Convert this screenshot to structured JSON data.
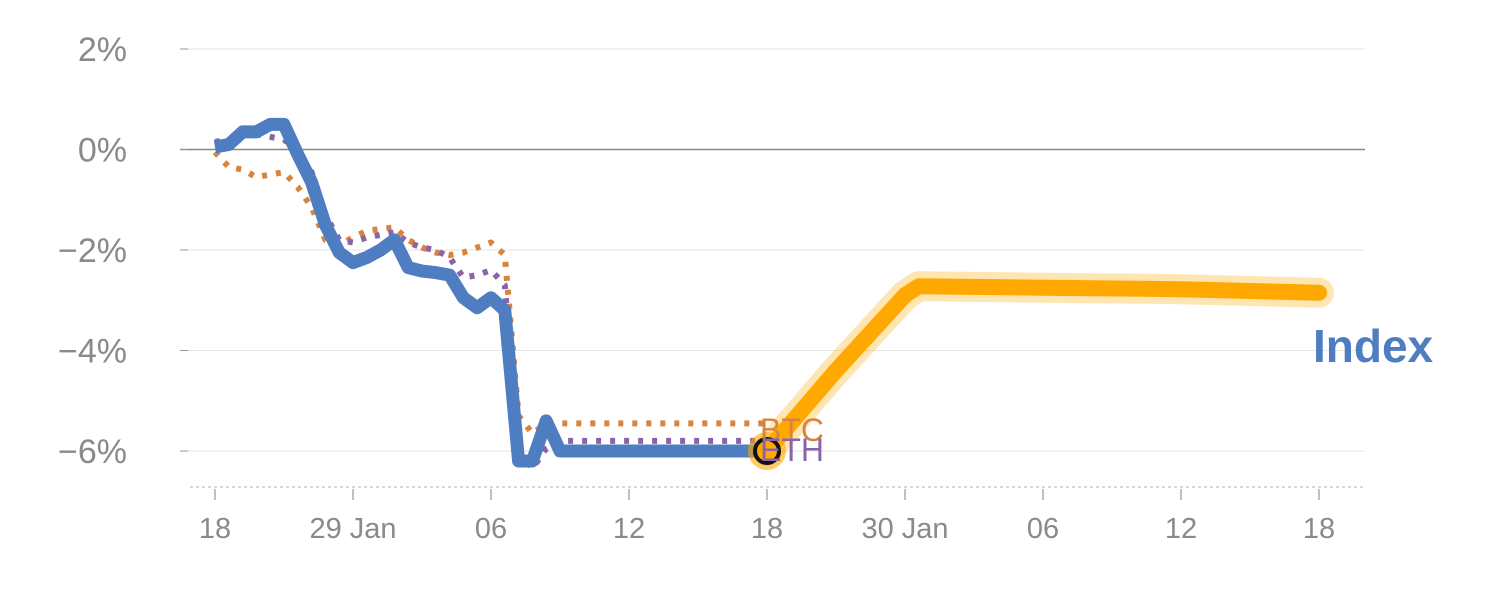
{
  "chart_data": {
    "type": "line",
    "title": "",
    "xlabel": "",
    "ylabel": "",
    "ylim": [
      -6.7,
      2.2
    ],
    "y_ticks": [
      {
        "value": 2,
        "label": "2%"
      },
      {
        "value": 0,
        "label": "0%"
      },
      {
        "value": -2,
        "label": "−2%"
      },
      {
        "value": -4,
        "label": "−4%"
      },
      {
        "value": -6,
        "label": "−6%"
      }
    ],
    "x_range": [
      -0.3,
      83.5
    ],
    "x_ticks": [
      {
        "day": 0,
        "label": "18"
      },
      {
        "day": 10,
        "label": "29 Jan"
      },
      {
        "day": 20,
        "label": "06"
      },
      {
        "day": 30,
        "label": "12"
      },
      {
        "day": 40,
        "label": "18"
      },
      {
        "day": 50,
        "label": "30 Jan"
      },
      {
        "day": 60,
        "label": "06"
      },
      {
        "day": 70,
        "label": "12"
      },
      {
        "day": 80,
        "label": "18"
      }
    ],
    "grid": true,
    "colors": {
      "index": "#4e7ec1",
      "btc": "#d9843c",
      "eth": "#8a63a8",
      "projection": "#ffa800",
      "grid": "#e6e6e6",
      "zero": "#888888",
      "axis_text": "#8a8a8a"
    },
    "series": [
      {
        "name": "Index",
        "style": "solid",
        "x": [
          0,
          1,
          2,
          3,
          4,
          5,
          6,
          7,
          8,
          9,
          10,
          11,
          12,
          13,
          14,
          15,
          16,
          17,
          18,
          19,
          20,
          21,
          22,
          23,
          24,
          25,
          26,
          27,
          28,
          29,
          30,
          31,
          32,
          33,
          34,
          35,
          36,
          37,
          38,
          39,
          40
        ],
        "y": [
          0.05,
          0.1,
          0.35,
          0.35,
          0.5,
          0.5,
          -0.1,
          -0.65,
          -1.5,
          -2.05,
          -2.25,
          -2.15,
          -2.0,
          -1.8,
          -2.35,
          -2.42,
          -2.45,
          -2.5,
          -2.95,
          -3.15,
          -2.95,
          -3.2,
          -6.2,
          -6.2,
          -5.4,
          -6.0,
          -6.0,
          -6.0,
          -6.0,
          -6.0,
          -6.0,
          -6.0,
          -6.0,
          -6.0,
          -6.0,
          -6.0,
          -6.0,
          -6.0,
          -6.0,
          -6.0,
          -6.0
        ]
      },
      {
        "name": "BTC",
        "style": "dotted",
        "x": [
          0,
          1,
          2,
          3,
          4,
          5,
          6,
          7,
          8,
          9,
          10,
          11,
          12,
          13,
          14,
          15,
          16,
          17,
          18,
          19,
          20,
          21,
          22,
          23,
          24,
          25,
          26,
          27,
          28,
          29,
          30,
          31,
          32,
          33,
          34,
          35,
          36,
          37,
          38,
          39,
          40
        ],
        "y": [
          -0.05,
          -0.35,
          -0.4,
          -0.55,
          -0.5,
          -0.45,
          -0.75,
          -1.15,
          -1.8,
          -1.9,
          -1.75,
          -1.62,
          -1.58,
          -1.55,
          -1.8,
          -1.95,
          -2.05,
          -2.1,
          -2.05,
          -1.95,
          -1.85,
          -2.1,
          -5.3,
          -5.65,
          -5.45,
          -5.45,
          -5.45,
          -5.45,
          -5.45,
          -5.45,
          -5.45,
          -5.45,
          -5.45,
          -5.45,
          -5.45,
          -5.45,
          -5.45,
          -5.45,
          -5.45,
          -5.45,
          -5.45
        ]
      },
      {
        "name": "ETH",
        "style": "dotted",
        "x": [
          0,
          1,
          2,
          3,
          4,
          5,
          6,
          7,
          8,
          9,
          10,
          11,
          12,
          13,
          14,
          15,
          16,
          17,
          18,
          19,
          20,
          21,
          22,
          23,
          24,
          25,
          26,
          27,
          28,
          29,
          30,
          31,
          32,
          33,
          34,
          35,
          36,
          37,
          38,
          39,
          40
        ],
        "y": [
          0.15,
          0.2,
          0.3,
          0.3,
          0.25,
          0.2,
          -0.05,
          -0.45,
          -1.3,
          -1.8,
          -1.85,
          -1.75,
          -1.7,
          -1.65,
          -1.85,
          -1.95,
          -2.0,
          -2.15,
          -2.55,
          -2.5,
          -2.4,
          -2.7,
          -6.0,
          -6.35,
          -5.95,
          -5.8,
          -5.8,
          -5.8,
          -5.8,
          -5.8,
          -5.8,
          -5.8,
          -5.8,
          -5.8,
          -5.8,
          -5.8,
          -5.8,
          -5.8,
          -5.8,
          -5.8,
          -5.8
        ]
      },
      {
        "name": "",
        "style": "projection",
        "x": [
          40,
          45,
          50,
          51,
          60,
          70,
          80
        ],
        "y": [
          -6.0,
          -4.4,
          -2.9,
          -2.72,
          -2.75,
          -2.78,
          -2.85
        ]
      }
    ],
    "series_labels": {
      "btc": "BTC",
      "eth": "ETH",
      "index": "Index"
    },
    "marker": {
      "x": 40,
      "y": -6.0
    }
  }
}
